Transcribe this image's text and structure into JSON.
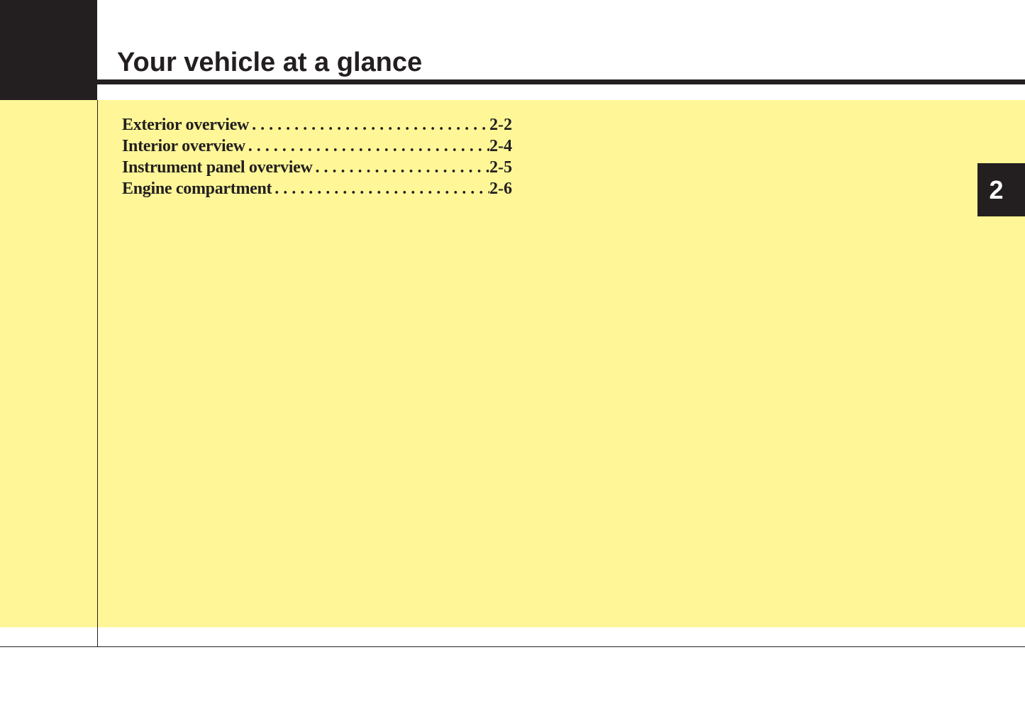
{
  "header": {
    "title": "Your vehicle at a glance"
  },
  "toc": [
    {
      "label": "Exterior overview",
      "page": "2-2"
    },
    {
      "label": "Interior overview",
      "page": "2-4"
    },
    {
      "label": "Instrument panel overview",
      "page": "2-5"
    },
    {
      "label": "Engine compartment",
      "page": "2-6"
    }
  ],
  "chapter_tab": {
    "number": "2"
  },
  "colors": {
    "background_band": "#fff797",
    "dark": "#231f20"
  }
}
